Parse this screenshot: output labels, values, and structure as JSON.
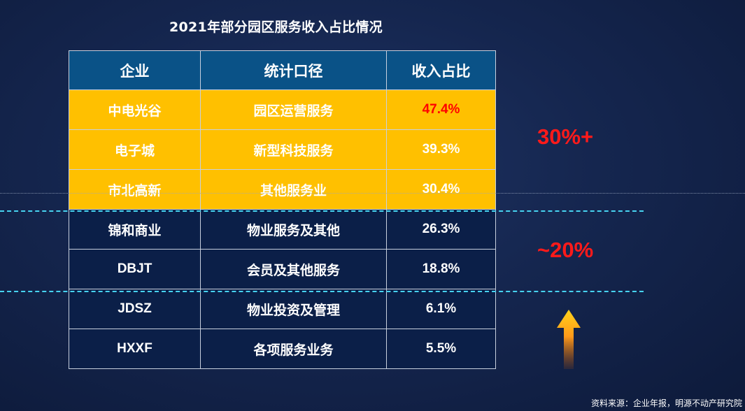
{
  "title": "2021年部分园区服务收入占比情况",
  "table": {
    "headers": [
      "企业",
      "统计口径",
      "收入占比"
    ],
    "rows": [
      {
        "company": "中电光谷",
        "scope": "园区运营服务",
        "share": "47.4%",
        "highlight": true,
        "share_color": "#ff0000"
      },
      {
        "company": "电子城",
        "scope": "新型科技服务",
        "share": "39.3%",
        "highlight": true
      },
      {
        "company": "市北高新",
        "scope": "其他服务业",
        "share": "30.4%",
        "highlight": true
      },
      {
        "company": "锦和商业",
        "scope": "物业服务及其他",
        "share": "26.3%",
        "highlight": false
      },
      {
        "company": "DBJT",
        "scope": "会员及其他服务",
        "share": "18.8%",
        "highlight": false
      },
      {
        "company": "JDSZ",
        "scope": "物业投资及管理",
        "share": "6.1%",
        "highlight": false
      },
      {
        "company": "HXXF",
        "scope": "各项服务业务",
        "share": "5.5%",
        "highlight": false
      }
    ]
  },
  "annotations": {
    "tier1": "30%+",
    "tier2": "~20%"
  },
  "arrow_icon": "up-arrow-gradient",
  "source": "资料来源：企业年报，明源不动产研究院",
  "colors": {
    "highlight_row": "#ffc000",
    "header_row": "#0a5287",
    "dark_row": "#0b1f48",
    "annotation": "#ff1a1a",
    "dash_line": "#47d3f0"
  }
}
